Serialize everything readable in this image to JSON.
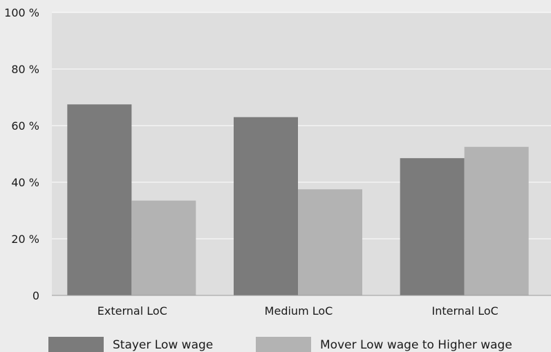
{
  "chart_data": {
    "type": "bar",
    "title": "",
    "xlabel": "",
    "ylabel": "",
    "categories": [
      "External LoC",
      "Medium LoC",
      "Internal LoC"
    ],
    "series": [
      {
        "name": "Stayer Low wage",
        "values": [
          67.5,
          63,
          48.5
        ],
        "color": "#7b7b7b"
      },
      {
        "name": "Mover Low wage to Higher wage",
        "values": [
          33.5,
          37.5,
          52.5
        ],
        "color": "#b3b3b3"
      }
    ],
    "ylim": [
      0,
      100
    ],
    "yticks": [
      0,
      20,
      40,
      60,
      80,
      100
    ],
    "ytick_labels": [
      "0",
      "20 %",
      "40 %",
      "60 %",
      "80 %",
      "100 %"
    ],
    "grid": true,
    "legend_position": "bottom",
    "plot_background": "#dedede",
    "page_background": "#ececec"
  }
}
